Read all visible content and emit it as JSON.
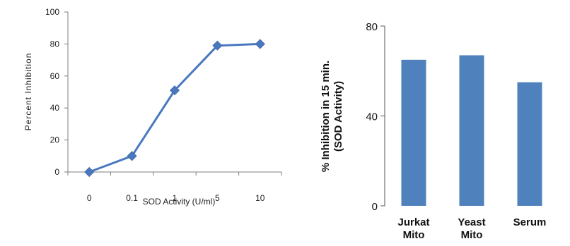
{
  "chart_data": [
    {
      "type": "line",
      "categories": [
        "0",
        "0.1",
        "1",
        "5",
        "10"
      ],
      "series": [
        {
          "values": [
            0,
            10,
            51,
            79,
            80
          ],
          "color": "#4a78bf",
          "marker": "diamond"
        }
      ],
      "title": "",
      "xlabel": "SOD Activity (U/ml)",
      "ylabel": "Percent Inhibition",
      "ylim": [
        0,
        100
      ],
      "yticks": [
        0,
        20,
        40,
        60,
        80,
        100
      ],
      "grid": false
    },
    {
      "type": "bar",
      "categories": [
        {
          "line1": "Jurkat",
          "line2": "Mito"
        },
        {
          "line1": "Yeast",
          "line2": "Mito"
        },
        {
          "line1": "Serum",
          "line2": ""
        }
      ],
      "values": [
        65,
        67,
        55
      ],
      "color": "#4f81bd",
      "title": "",
      "xlabel": "",
      "ylabel_line1": "% Inhibition  in 15 min.",
      "ylabel_line2": "(SOD Activity)",
      "ylim": [
        0,
        80
      ],
      "yticks": [
        0,
        40,
        80
      ],
      "grid": false
    }
  ]
}
